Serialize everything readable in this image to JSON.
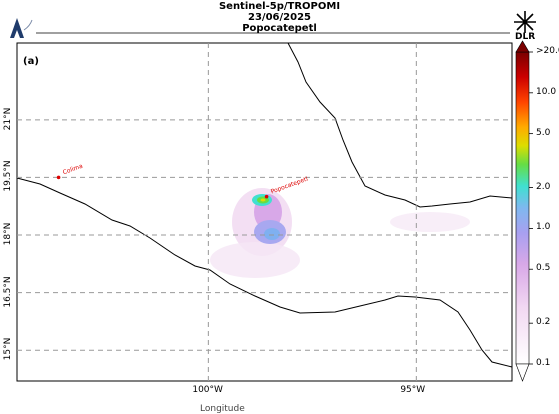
{
  "title": {
    "line1": "Sentinel-5p/TROPOMI",
    "line2": "23/06/2025",
    "line3": "Popocatepetl"
  },
  "panel_label": "(a)",
  "logo_right": "DLR",
  "logo_left": "logo",
  "map": {
    "lon_range": [
      -104.6,
      -92.7
    ],
    "lat_range": [
      14.2,
      23.0
    ],
    "lon_ticks": [
      {
        "value": -100,
        "label": "100°W"
      },
      {
        "value": -95,
        "label": "95°W"
      }
    ],
    "lat_ticks": [
      {
        "value": 21.0,
        "label": "21°N"
      },
      {
        "value": 19.5,
        "label": "19.5°N"
      },
      {
        "value": 18.0,
        "label": "18°N"
      },
      {
        "value": 16.5,
        "label": "16.5°N"
      },
      {
        "value": 15.0,
        "label": "15°N"
      }
    ],
    "grid": true,
    "markers": [
      {
        "name": "Colima",
        "lon": -103.6,
        "lat": 19.5,
        "color": "#dd0000"
      },
      {
        "name": "Popocatepetl",
        "lon": -98.6,
        "lat": 19.0,
        "color": "#dd0000"
      }
    ]
  },
  "colorbar": {
    "scale": "log",
    "range": [
      0.1,
      20.0
    ],
    "ticks": [
      {
        "value": 20.0,
        "label": ">20.0"
      },
      {
        "value": 10.0,
        "label": "10.0"
      },
      {
        "value": 5.0,
        "label": "5.0"
      },
      {
        "value": 2.0,
        "label": "2.0"
      },
      {
        "value": 1.0,
        "label": "1.0"
      },
      {
        "value": 0.5,
        "label": "0.5"
      },
      {
        "value": 0.2,
        "label": "0.2"
      },
      {
        "value": 0.1,
        "label": "0.1"
      }
    ],
    "colors": [
      "#ffffff",
      "#f5dff5",
      "#e0a8e8",
      "#a8a0f0",
      "#7fb8f0",
      "#40e0d0",
      "#66dd44",
      "#dddd00",
      "#ffaa00",
      "#ff4400",
      "#cc0000",
      "#7a0000"
    ]
  },
  "bottom_text": "Longitude"
}
